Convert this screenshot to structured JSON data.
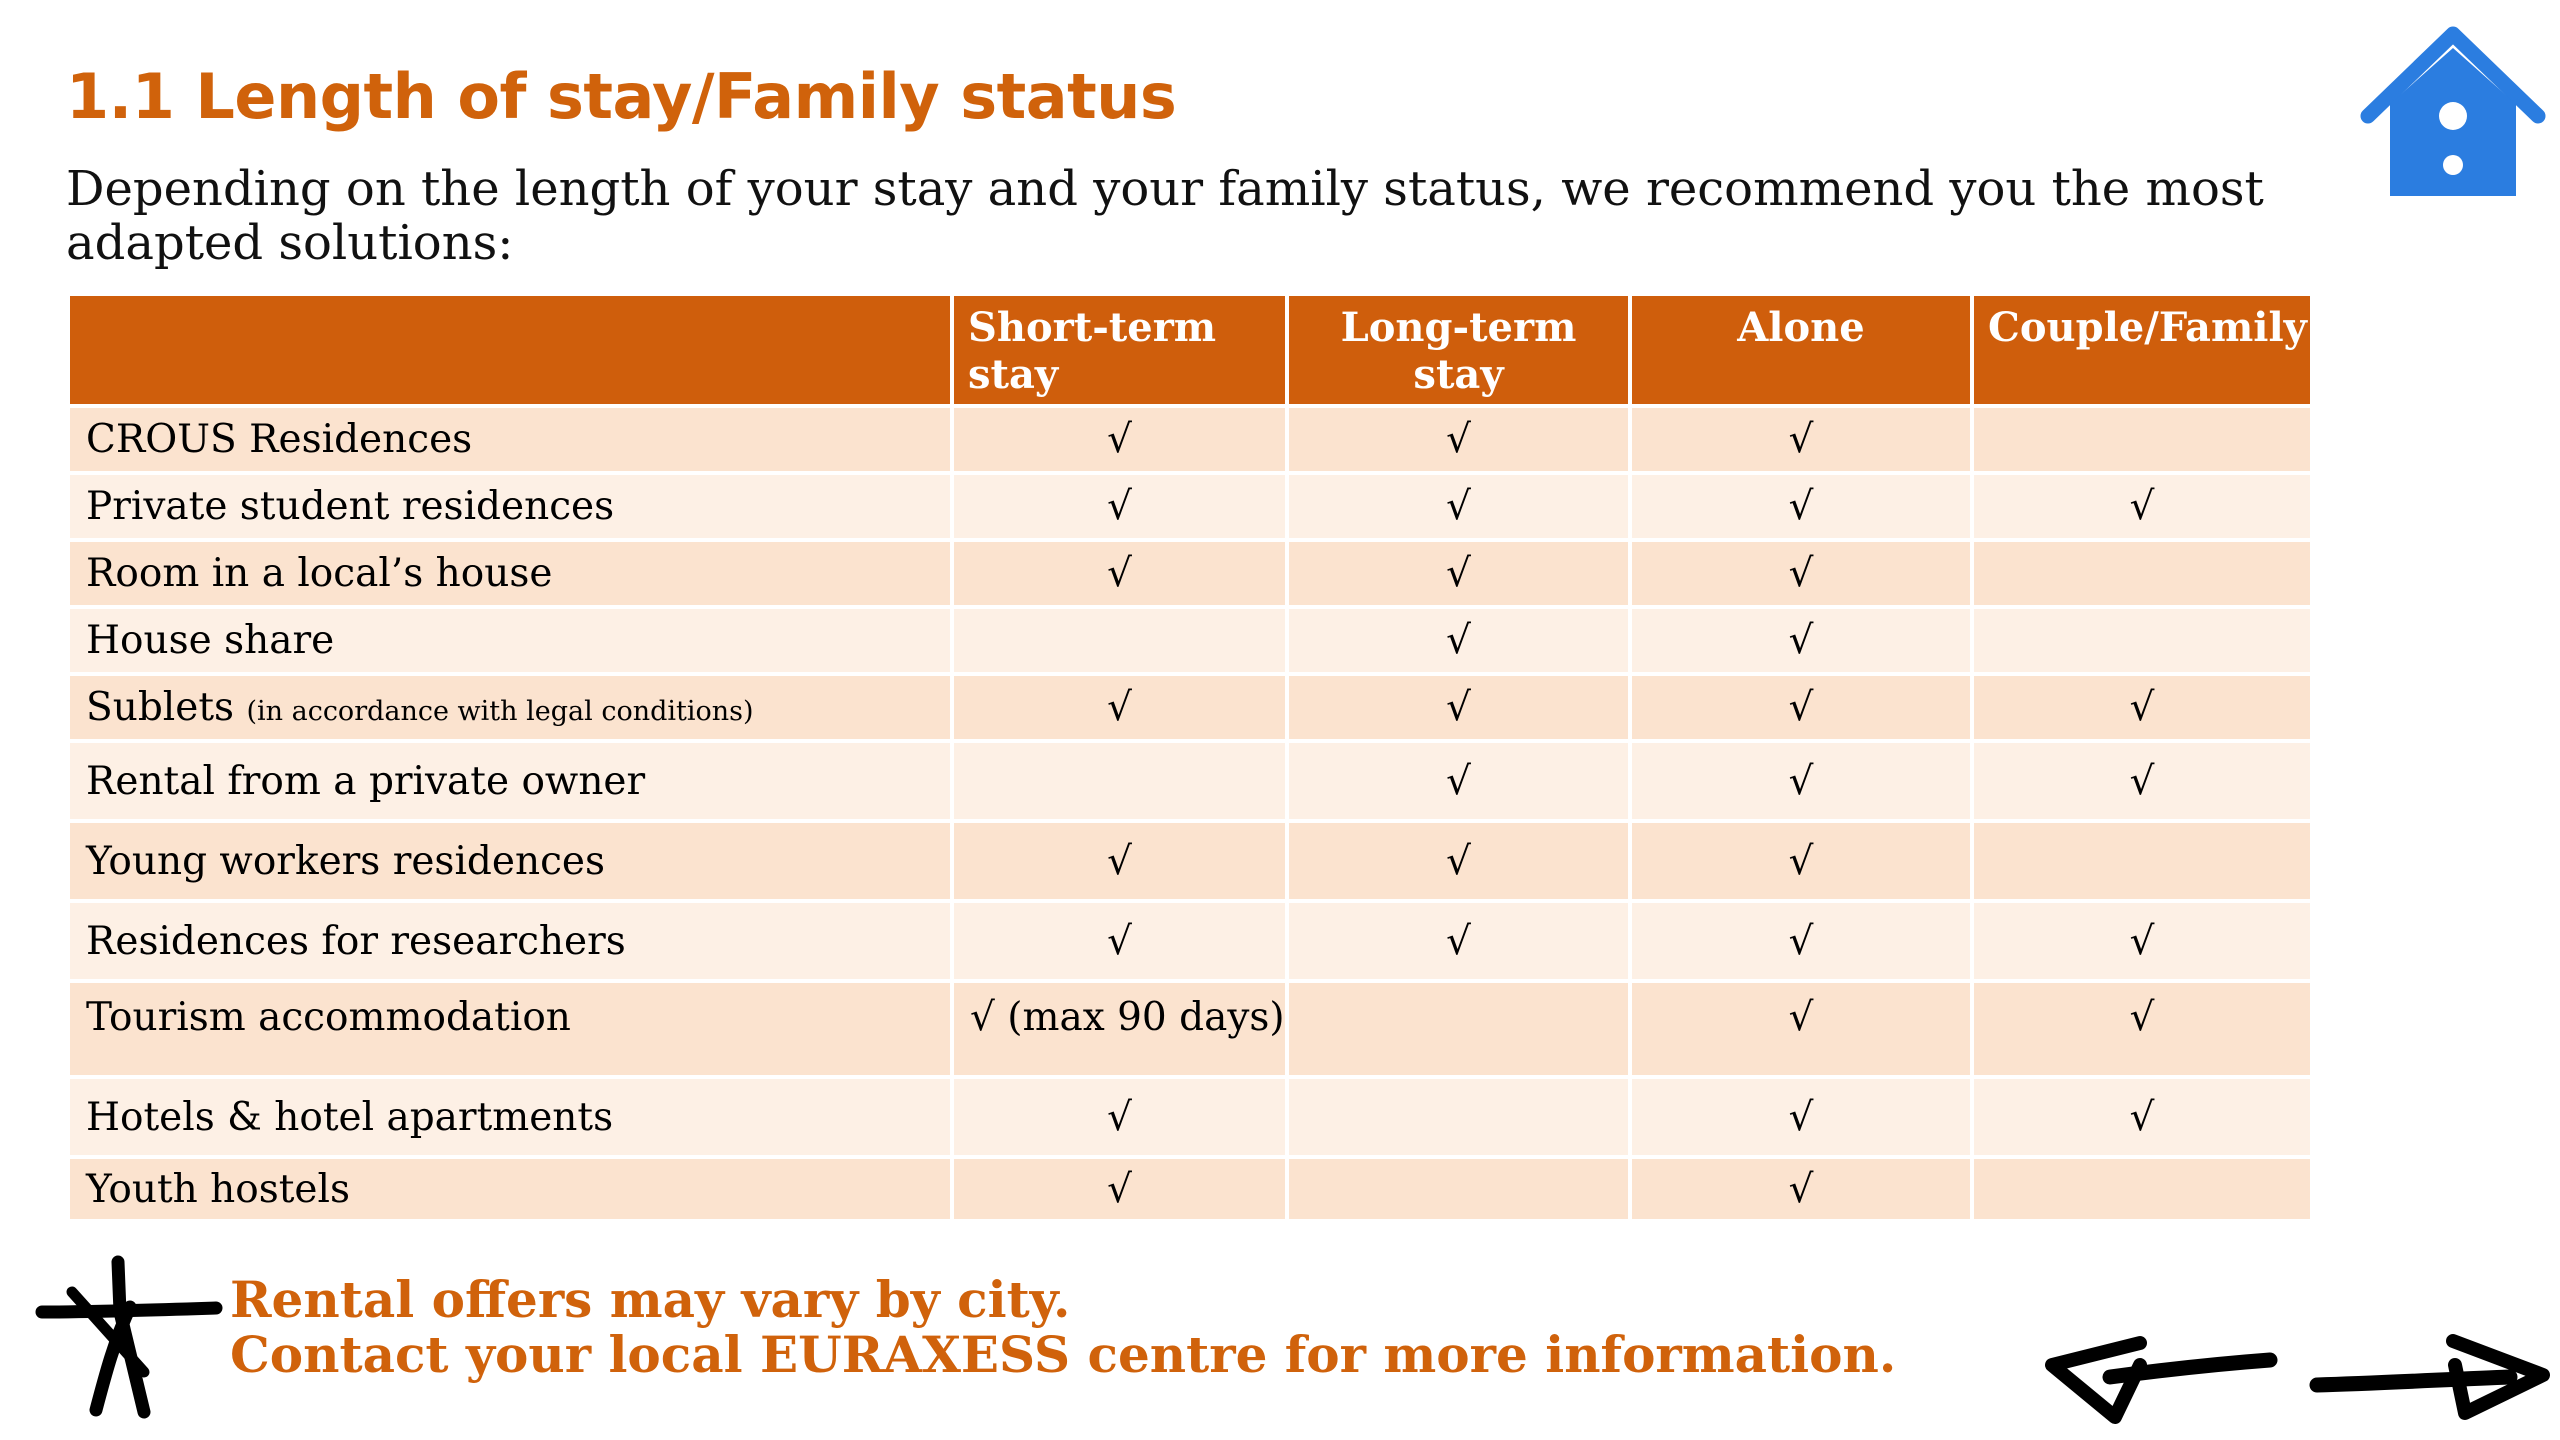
{
  "page": {
    "title": "1.1 Length of stay/Family status",
    "intro": "Depending on the length of your stay and your family status, we recommend you the most adapted solutions:",
    "footer_line1": "Rental offers may vary by city.",
    "footer_line2": "Contact your local EURAXESS centre for more information.",
    "icons": [
      "home-icon",
      "star-annotation-icon",
      "arrow-left-icon",
      "arrow-right-icon"
    ],
    "colors": {
      "accent": "#d0620b",
      "header_bg": "#cf5e0c",
      "row_odd": "#fbe3cf",
      "row_even": "#fdf0e5",
      "home_icon": "#2b7de0"
    }
  },
  "table": {
    "headers": [
      "",
      "Short-term stay",
      "Long-term stay",
      "Alone",
      "Couple/Family"
    ],
    "rows": [
      {
        "label": "CROUS Residences",
        "note": "",
        "cells": [
          "√",
          "√",
          "√",
          ""
        ]
      },
      {
        "label": "Private student residences",
        "note": "",
        "cells": [
          "√",
          "√",
          "√",
          "√"
        ]
      },
      {
        "label": "Room in a local’s house",
        "note": "",
        "cells": [
          "√",
          "√",
          "√",
          ""
        ]
      },
      {
        "label": "House share",
        "note": "",
        "cells": [
          "",
          "√",
          "√",
          ""
        ]
      },
      {
        "label": "Sublets",
        "note": "(in accordance with legal conditions)",
        "cells": [
          "√",
          "√",
          "√",
          "√"
        ]
      },
      {
        "label": "Rental from a private owner",
        "note": "",
        "cells": [
          "",
          "√",
          "√",
          "√"
        ]
      },
      {
        "label": "Young workers residences",
        "note": "",
        "cells": [
          "√",
          "√",
          "√",
          ""
        ]
      },
      {
        "label": "Residences for researchers",
        "note": "",
        "cells": [
          "√",
          "√",
          "√",
          "√"
        ]
      },
      {
        "label": "Tourism accommodation",
        "note": "",
        "cells": [
          "√ (max 90 days)",
          "",
          "√",
          "√"
        ]
      },
      {
        "label": "Hotels & hotel apartments",
        "note": "",
        "cells": [
          "√",
          "",
          "√",
          "√"
        ]
      },
      {
        "label": "Youth hostels",
        "note": "",
        "cells": [
          "√",
          "",
          "√",
          ""
        ]
      }
    ]
  }
}
